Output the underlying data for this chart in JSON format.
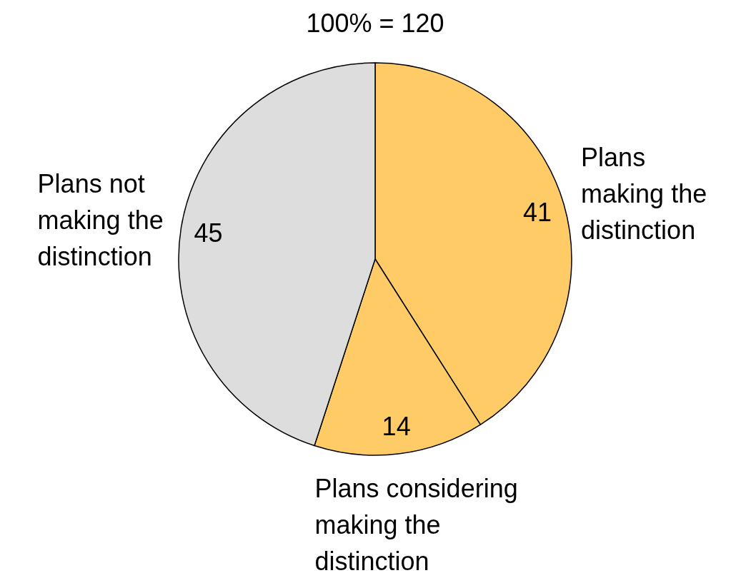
{
  "chart_data": {
    "type": "pie",
    "title": "100% = 120",
    "categories": [
      "Plans making the distinction",
      "Plans considering making the distinction",
      "Plans not making the distinction"
    ],
    "values": [
      41,
      14,
      45
    ],
    "colors": [
      "#fecb67",
      "#fecb67",
      "#dddddd"
    ],
    "data_labels": true
  }
}
